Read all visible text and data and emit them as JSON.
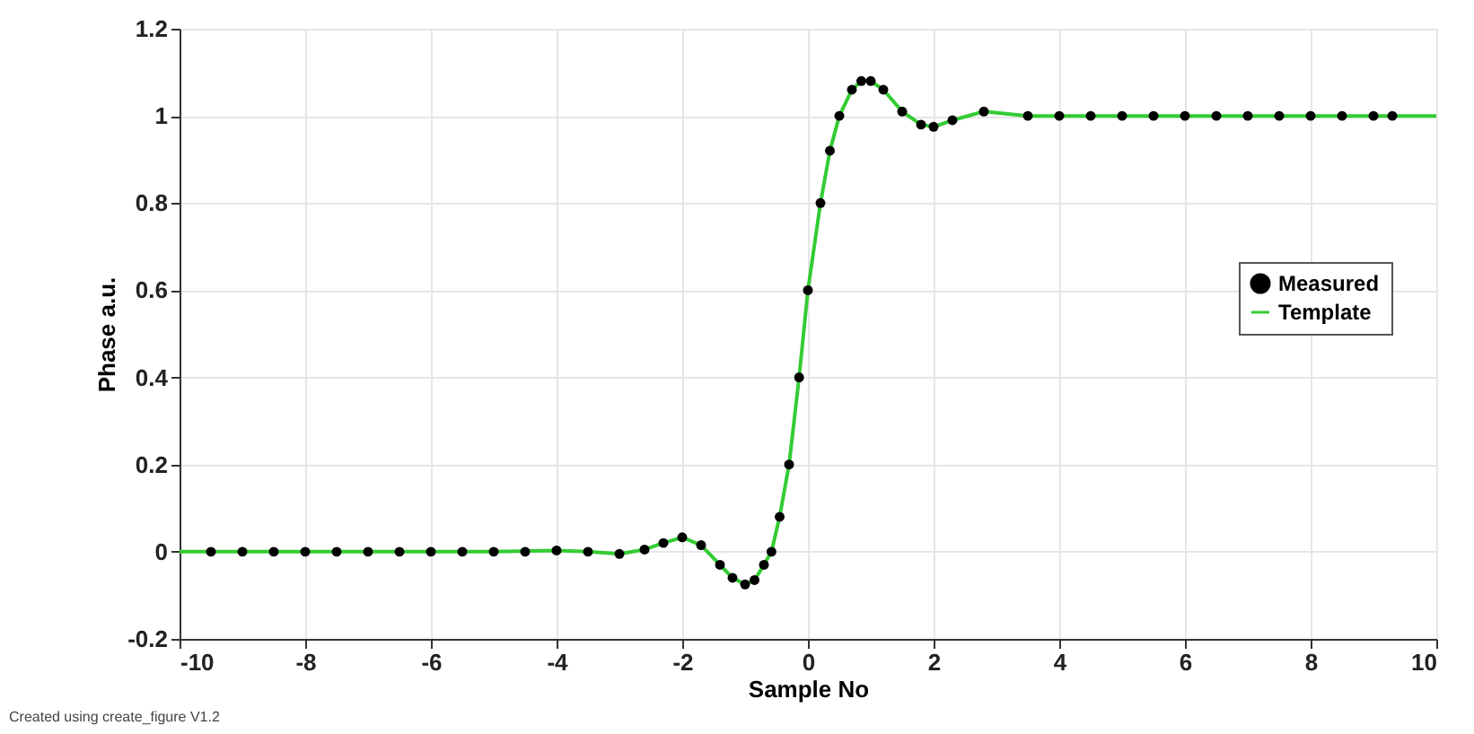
{
  "chart_data": {
    "type": "line",
    "xlabel": "Sample No",
    "ylabel": "Phase a.u.",
    "xlim": [
      -10,
      10
    ],
    "xticks": [
      -10,
      -8,
      -6,
      -4,
      -2,
      0,
      2,
      4,
      6,
      8,
      10
    ],
    "ylim": [
      -0.2,
      1.2
    ],
    "yticks": [
      -0.2,
      0,
      0.2,
      0.4,
      0.6,
      0.8,
      1,
      1.2
    ],
    "grid": true,
    "legend": "right",
    "annotations": [
      "Created using create_figure V1.2"
    ],
    "series": [
      {
        "name": "Measured",
        "type": "scatter",
        "marker": "circle",
        "color": "#000000",
        "x": [
          -9.5,
          -9,
          -8.5,
          -8,
          -7.5,
          -7,
          -6.5,
          -6,
          -5.5,
          -5,
          -4.5,
          -4,
          -3.5,
          -3,
          -2.6,
          -2.3,
          -2,
          -1.7,
          -1.4,
          -1.2,
          -1.0,
          -0.85,
          -0.7,
          -0.58,
          -0.45,
          -0.3,
          -0.14,
          0,
          0.2,
          0.35,
          0.5,
          0.7,
          0.85,
          1.0,
          1.2,
          1.5,
          1.8,
          2.0,
          2.3,
          2.8,
          3.5,
          4,
          4.5,
          5,
          5.5,
          6,
          6.5,
          7,
          7.5,
          8,
          8.5,
          9,
          9.3
        ],
        "values": [
          0,
          0,
          0,
          0,
          0,
          0,
          0,
          0,
          0,
          0,
          0,
          0.003,
          0,
          -0.005,
          0.005,
          0.02,
          0.033,
          0.015,
          -0.03,
          -0.06,
          -0.075,
          -0.065,
          -0.03,
          0,
          0.08,
          0.2,
          0.4,
          0.6,
          0.8,
          0.92,
          1.0,
          1.06,
          1.08,
          1.08,
          1.06,
          1.01,
          0.98,
          0.975,
          0.99,
          1.01,
          1.0,
          1.0,
          1.0,
          1.0,
          1.0,
          1.0,
          1.0,
          1.0,
          1.0,
          1.0,
          1.0,
          1.0,
          1.0
        ]
      },
      {
        "name": "Template",
        "type": "line",
        "line_style": "solid",
        "color": "#33cc33",
        "x": [
          -10,
          -8,
          -6,
          -5,
          -4,
          -3.5,
          -3,
          -2.6,
          -2.3,
          -2,
          -1.7,
          -1.4,
          -1.2,
          -1.0,
          -0.85,
          -0.7,
          -0.58,
          -0.45,
          -0.3,
          -0.14,
          0,
          0.2,
          0.35,
          0.5,
          0.7,
          0.85,
          1.0,
          1.2,
          1.5,
          1.8,
          2.0,
          2.3,
          2.8,
          3.5,
          4,
          6,
          8,
          10
        ],
        "values": [
          0,
          0,
          0,
          0,
          0.003,
          0,
          -0.005,
          0.005,
          0.02,
          0.033,
          0.015,
          -0.03,
          -0.06,
          -0.075,
          -0.065,
          -0.03,
          0,
          0.08,
          0.2,
          0.4,
          0.6,
          0.8,
          0.92,
          1.0,
          1.06,
          1.08,
          1.08,
          1.06,
          1.01,
          0.98,
          0.975,
          0.99,
          1.01,
          1.0,
          1.0,
          1.0,
          1.0,
          1.0
        ]
      }
    ]
  }
}
